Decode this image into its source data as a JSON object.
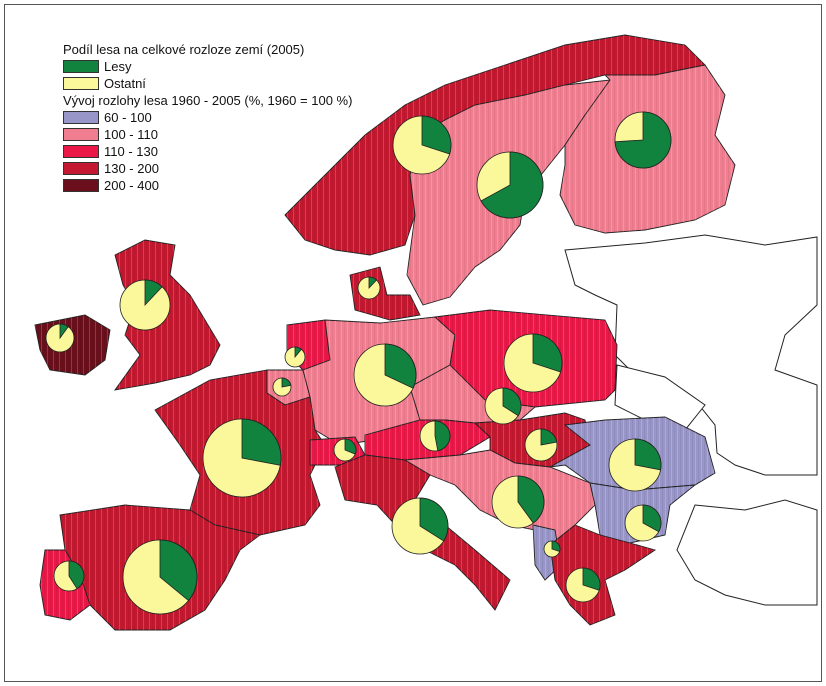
{
  "legend": {
    "title1": "Podíl lesa na celkové rozloze zemí (2005)",
    "pie_items": [
      {
        "label": "Lesy",
        "color": "#11833e"
      },
      {
        "label": "Ostatní",
        "color": "#fbf79b"
      }
    ],
    "title2": "Vývoj rozlohy lesa 1960 - 2005 (%, 1960 = 100 %)",
    "classes": [
      {
        "label": "60 - 100",
        "color": "#9895c8"
      },
      {
        "label": "100 - 110",
        "color": "#f07e90"
      },
      {
        "label": "110 - 130",
        "color": "#ea1747"
      },
      {
        "label": "130 - 200",
        "color": "#c3182f"
      },
      {
        "label": "200 - 400",
        "color": "#6a0f1b"
      }
    ]
  },
  "countries": [
    {
      "name": "Norway",
      "class": "130 - 200",
      "forest_share": 0.3
    },
    {
      "name": "Sweden",
      "class": "100 - 110",
      "forest_share": 0.67
    },
    {
      "name": "Finland",
      "class": "100 - 110",
      "forest_share": 0.74
    },
    {
      "name": "United Kingdom",
      "class": "130 - 200",
      "forest_share": 0.12
    },
    {
      "name": "Ireland",
      "class": "200 - 400",
      "forest_share": 0.1
    },
    {
      "name": "Denmark",
      "class": "130 - 200",
      "forest_share": 0.12
    },
    {
      "name": "Netherlands",
      "class": "110 - 130",
      "forest_share": 0.11
    },
    {
      "name": "Belgium",
      "class": "100 - 110",
      "forest_share": 0.22
    },
    {
      "name": "Germany",
      "class": "100 - 110",
      "forest_share": 0.32
    },
    {
      "name": "Poland",
      "class": "110 - 130",
      "forest_share": 0.3
    },
    {
      "name": "Czech Republic",
      "class": "100 - 110",
      "forest_share": 0.34
    },
    {
      "name": "France",
      "class": "130 - 200",
      "forest_share": 0.28
    },
    {
      "name": "Switzerland",
      "class": "110 - 130",
      "forest_share": 0.31
    },
    {
      "name": "Austria",
      "class": "110 - 130",
      "forest_share": 0.47
    },
    {
      "name": "Hungary",
      "class": "130 - 200",
      "forest_share": 0.22
    },
    {
      "name": "Romania",
      "class": "60 - 100",
      "forest_share": 0.28
    },
    {
      "name": "Yugoslavia",
      "class": "100 - 110",
      "forest_share": 0.4
    },
    {
      "name": "Italy",
      "class": "130 - 200",
      "forest_share": 0.34
    },
    {
      "name": "Bulgaria",
      "class": "60 - 100",
      "forest_share": 0.33
    },
    {
      "name": "Albania",
      "class": "60 - 100",
      "forest_share": 0.3
    },
    {
      "name": "Greece",
      "class": "130 - 200",
      "forest_share": 0.3
    },
    {
      "name": "Spain",
      "class": "130 - 200",
      "forest_share": 0.36
    },
    {
      "name": "Portugal",
      "class": "110 - 130",
      "forest_share": 0.41
    }
  ]
}
